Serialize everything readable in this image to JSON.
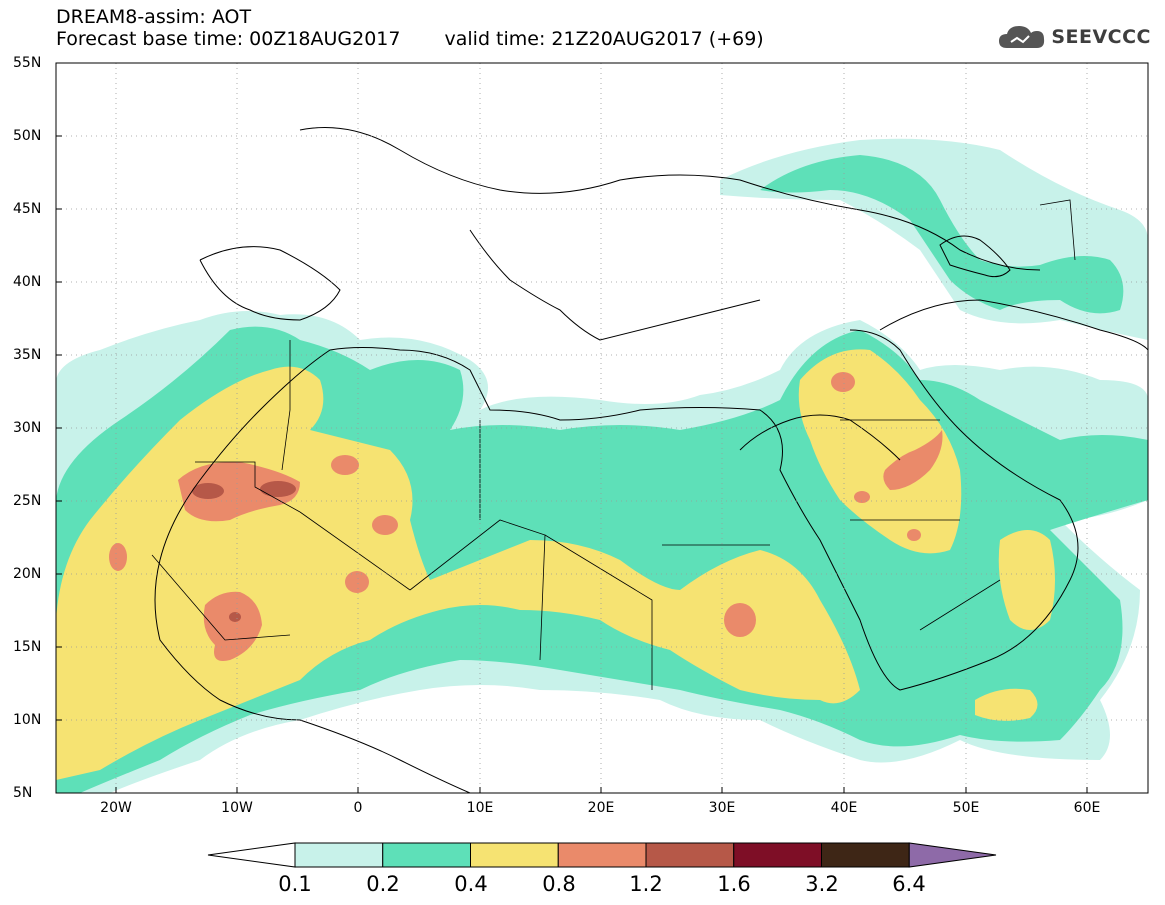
{
  "header": {
    "title": "DREAM8-assim: AOT",
    "base_time_label": "Forecast base time: 00Z18AUG2017",
    "valid_time_label": "valid time: 21Z20AUG2017 (+69)"
  },
  "logo": {
    "text": "SEEVCCC",
    "icon": "cloud-icon"
  },
  "map": {
    "variable": "AOT",
    "lon_range": [
      -25,
      65
    ],
    "lat_range": [
      5,
      55
    ],
    "lat_ticks": [
      "55N",
      "50N",
      "45N",
      "40N",
      "35N",
      "30N",
      "25N",
      "20N",
      "15N",
      "10N",
      "5N"
    ],
    "lon_ticks": [
      "20W",
      "10W",
      "0",
      "10E",
      "20E",
      "30E",
      "40E",
      "50E",
      "60E"
    ],
    "grid": "dotted"
  },
  "colorbar": {
    "labels": [
      "0.1",
      "0.2",
      "0.4",
      "0.8",
      "1.2",
      "1.6",
      "3.2",
      "6.4"
    ],
    "colors": [
      "#c8f2ea",
      "#5ee0b8",
      "#f6e372",
      "#ea8a6a",
      "#b65848",
      "#7e0e26",
      "#3e2616",
      "#8e6aa8"
    ],
    "under_color": "#ffffff"
  }
}
